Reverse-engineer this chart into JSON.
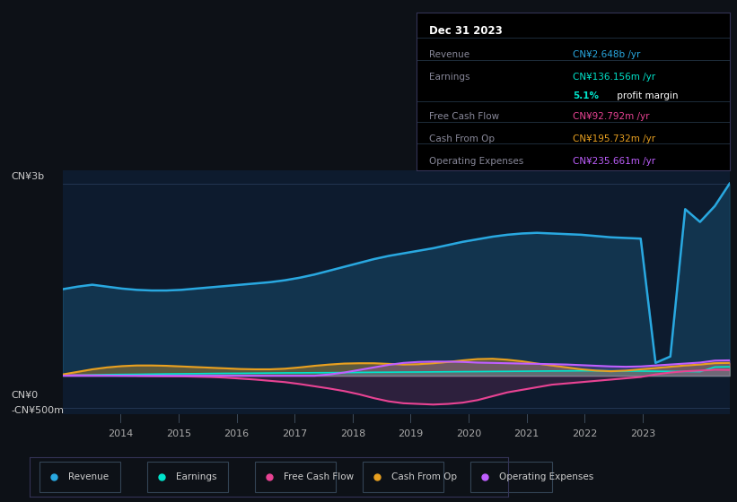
{
  "background_color": "#0d1117",
  "plot_bg_color": "#0d1b2e",
  "colors": {
    "revenue": "#29a8e0",
    "earnings": "#00e5cc",
    "free_cash_flow": "#e84393",
    "cash_from_op": "#e8a020",
    "operating_expenses": "#bf5fff"
  },
  "ylim": [
    -600,
    3200
  ],
  "xlim_start": 2013.0,
  "xlim_end": 2024.5,
  "revenue": [
    1350,
    1390,
    1420,
    1390,
    1360,
    1340,
    1330,
    1330,
    1340,
    1360,
    1380,
    1400,
    1420,
    1440,
    1460,
    1490,
    1530,
    1580,
    1640,
    1700,
    1760,
    1820,
    1870,
    1910,
    1950,
    1990,
    2040,
    2090,
    2130,
    2170,
    2200,
    2220,
    2230,
    2220,
    2210,
    2200,
    2180,
    2160,
    2150,
    2140,
    200,
    300,
    2600,
    2400,
    2648,
    3000
  ],
  "earnings": [
    10,
    12,
    15,
    18,
    20,
    22,
    25,
    28,
    30,
    32,
    35,
    37,
    38,
    40,
    42,
    44,
    45,
    47,
    48,
    50,
    52,
    54,
    55,
    57,
    58,
    60,
    62,
    64,
    65,
    67,
    68,
    70,
    72,
    74,
    75,
    77,
    78,
    76,
    74,
    72,
    70,
    68,
    66,
    64,
    136,
    140
  ],
  "free_cash_flow": [
    10,
    8,
    5,
    3,
    0,
    -2,
    -5,
    -8,
    -10,
    -15,
    -20,
    -30,
    -45,
    -60,
    -80,
    -100,
    -130,
    -165,
    -200,
    -240,
    -290,
    -350,
    -400,
    -430,
    -440,
    -450,
    -440,
    -420,
    -380,
    -320,
    -260,
    -220,
    -180,
    -140,
    -120,
    -100,
    -80,
    -60,
    -40,
    -20,
    20,
    50,
    70,
    80,
    93,
    90
  ],
  "cash_from_op": [
    20,
    60,
    100,
    130,
    150,
    160,
    160,
    155,
    145,
    135,
    125,
    115,
    105,
    100,
    100,
    110,
    130,
    155,
    175,
    190,
    195,
    195,
    185,
    175,
    180,
    195,
    215,
    240,
    260,
    265,
    250,
    225,
    190,
    160,
    130,
    100,
    80,
    70,
    80,
    100,
    120,
    140,
    160,
    175,
    196,
    200
  ],
  "operating_expenses": [
    0,
    0,
    0,
    0,
    0,
    0,
    0,
    0,
    0,
    0,
    0,
    0,
    0,
    0,
    0,
    0,
    0,
    0,
    20,
    50,
    90,
    130,
    170,
    200,
    215,
    220,
    220,
    215,
    205,
    200,
    195,
    190,
    185,
    180,
    175,
    165,
    155,
    145,
    140,
    145,
    160,
    175,
    190,
    205,
    236,
    240
  ],
  "x_start": 2013.0,
  "x_end": 2024.5,
  "n_points": 46,
  "year_ticks": [
    2014,
    2015,
    2016,
    2017,
    2018,
    2019,
    2020,
    2021,
    2022,
    2023
  ],
  "infobox": {
    "title": "Dec 31 2023",
    "rows": [
      {
        "label": "Revenue",
        "value": "CN¥2.648b /yr",
        "color": "#29a8e0"
      },
      {
        "label": "Earnings",
        "value": "CN¥136.156m /yr",
        "color": "#00e5cc"
      },
      {
        "label": "",
        "value1": "5.1%",
        "value2": " profit margin",
        "color1": "#00e5cc",
        "color2": "#ffffff"
      },
      {
        "label": "Free Cash Flow",
        "value": "CN¥92.792m /yr",
        "color": "#e84393"
      },
      {
        "label": "Cash From Op",
        "value": "CN¥195.732m /yr",
        "color": "#e8a020"
      },
      {
        "label": "Operating Expenses",
        "value": "CN¥235.661m /yr",
        "color": "#bf5fff"
      }
    ]
  },
  "legend": [
    {
      "label": "Revenue",
      "color": "#29a8e0"
    },
    {
      "label": "Earnings",
      "color": "#00e5cc"
    },
    {
      "label": "Free Cash Flow",
      "color": "#e84393"
    },
    {
      "label": "Cash From Op",
      "color": "#e8a020"
    },
    {
      "label": "Operating Expenses",
      "color": "#bf5fff"
    }
  ]
}
